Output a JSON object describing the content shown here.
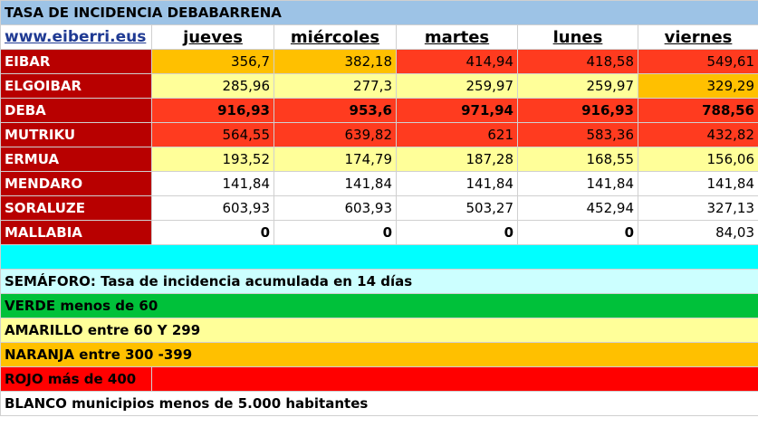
{
  "title": "TASA DE INCIDENCIA DEBABARRENA",
  "link": "www.eiberri.eus",
  "days": [
    "jueves",
    "miércoles",
    "martes",
    "lunes",
    "viernes"
  ],
  "colors": {
    "red": "#ff3b1f",
    "orange": "#ffc000",
    "yellow": "#ffff99",
    "white": "#ffffff",
    "green": "#00c13a",
    "cyan": "#00ffff",
    "lightcyan": "#ccffff",
    "town": "#b80000",
    "rojo": "#ff0000"
  },
  "rows": [
    {
      "town": "EIBAR",
      "values": [
        "356,7",
        "382,18",
        "414,94",
        "418,58",
        "549,61"
      ],
      "colors": [
        "orange",
        "orange",
        "red",
        "red",
        "red"
      ],
      "bold": false
    },
    {
      "town": "ELGOIBAR",
      "values": [
        "285,96",
        "277,3",
        "259,97",
        "259,97",
        "329,29"
      ],
      "colors": [
        "yellow",
        "yellow",
        "yellow",
        "yellow",
        "orange"
      ],
      "bold": false
    },
    {
      "town": "DEBA",
      "values": [
        "916,93",
        "953,6",
        "971,94",
        "916,93",
        "788,56"
      ],
      "colors": [
        "red",
        "red",
        "red",
        "red",
        "red"
      ],
      "bold": true
    },
    {
      "town": "MUTRIKU",
      "values": [
        "564,55",
        "639,82",
        "621",
        "583,36",
        "432,82"
      ],
      "colors": [
        "red",
        "red",
        "red",
        "red",
        "red"
      ],
      "bold": false
    },
    {
      "town": "ERMUA",
      "values": [
        "193,52",
        "174,79",
        "187,28",
        "168,55",
        "156,06"
      ],
      "colors": [
        "yellow",
        "yellow",
        "yellow",
        "yellow",
        "yellow"
      ],
      "bold": false
    },
    {
      "town": "MENDARO",
      "values": [
        "141,84",
        "141,84",
        "141,84",
        "141,84",
        "141,84"
      ],
      "colors": [
        "white",
        "white",
        "white",
        "white",
        "white"
      ],
      "bold": false
    },
    {
      "town": "SORALUZE",
      "values": [
        "603,93",
        "603,93",
        "503,27",
        "452,94",
        "327,13"
      ],
      "colors": [
        "white",
        "white",
        "white",
        "white",
        "white"
      ],
      "bold": false
    },
    {
      "town": "MALLABIA",
      "values": [
        "0",
        "0",
        "0",
        "0",
        "84,03"
      ],
      "colors": [
        "white",
        "white",
        "white",
        "white",
        "white"
      ],
      "bold": false,
      "bold_cells": [
        true,
        true,
        true,
        true,
        false
      ]
    }
  ],
  "legend": {
    "semaforo": "SEMÁFORO:  Tasa de incidencia acumulada en 14 días",
    "verde": "VERDE menos de 60",
    "amarillo": "AMARILLO entre 60 Y 299",
    "naranja": "NARANJA entre 300 -399",
    "rojo": "ROJO más de 400",
    "blanco": "BLANCO municipios menos de 5.000 habitantes"
  }
}
